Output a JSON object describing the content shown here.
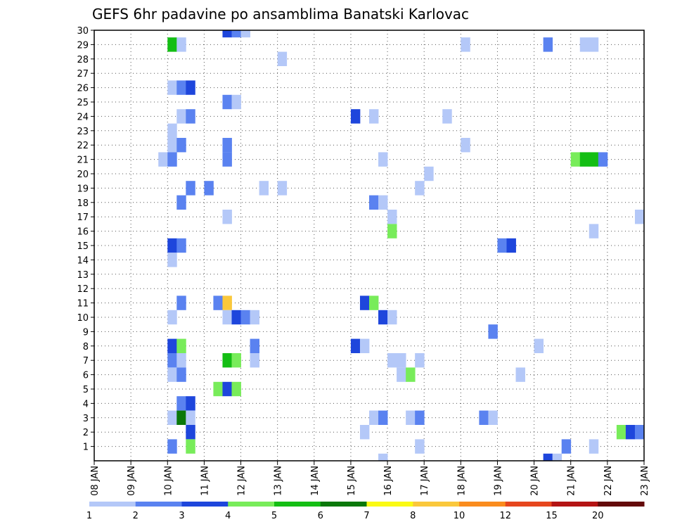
{
  "chart_data": {
    "type": "heatmap",
    "title": "GEFS 6hr padavine po ansamblima Banatski Karlovac",
    "xlabel": "",
    "ylabel": "",
    "x_ticks": [
      "08 JAN",
      "09 JAN",
      "10 JAN",
      "11 JAN",
      "12 JAN",
      "13 JAN",
      "14 JAN",
      "15 JAN",
      "16 JAN",
      "17 JAN",
      "18 JAN",
      "19 JAN",
      "20 JAN",
      "21 JAN",
      "22 JAN",
      "23 JAN"
    ],
    "x_range_days": [
      0,
      15
    ],
    "y_ticks": [
      "1",
      "2",
      "3",
      "4",
      "5",
      "6",
      "7",
      "8",
      "9",
      "10",
      "11",
      "12",
      "13",
      "14",
      "15",
      "16",
      "17",
      "18",
      "19",
      "20",
      "21",
      "22",
      "23",
      "24",
      "25",
      "26",
      "27",
      "28",
      "29",
      "30"
    ],
    "y_range": [
      0,
      30
    ],
    "step_hours": 6,
    "grid": true,
    "legend": {
      "placement": "bottom",
      "levels": [
        "1",
        "2",
        "3",
        "4",
        "5",
        "6",
        "7",
        "8",
        "10",
        "12",
        "15",
        "20"
      ],
      "colors": [
        "#b4c8f8",
        "#5a82f0",
        "#1e46dc",
        "#78ec5a",
        "#14be14",
        "#0a780a",
        "#fafa14",
        "#fac83c",
        "#fa8c1e",
        "#e6461e",
        "#b41414",
        "#640a0a"
      ]
    },
    "unit_colors": [
      "#b4c8f8",
      "#5a82f0",
      "#1e46dc",
      "#78ec5a",
      "#14be14",
      "#0a780a",
      "#fac83c"
    ],
    "cells": [
      {
        "member": 30,
        "day": 3.5,
        "level": 3
      },
      {
        "member": 30,
        "day": 3.75,
        "level": 2
      },
      {
        "member": 30,
        "day": 4.0,
        "level": 1
      },
      {
        "member": 29,
        "day": 2.0,
        "level": 5
      },
      {
        "member": 29,
        "day": 2.25,
        "level": 1
      },
      {
        "member": 29,
        "day": 10.0,
        "level": 1
      },
      {
        "member": 29,
        "day": 12.25,
        "level": 2
      },
      {
        "member": 29,
        "day": 13.25,
        "level": 1
      },
      {
        "member": 29,
        "day": 13.5,
        "level": 1
      },
      {
        "member": 28,
        "day": 5.0,
        "level": 1
      },
      {
        "member": 26,
        "day": 2.0,
        "level": 1
      },
      {
        "member": 26,
        "day": 2.25,
        "level": 2
      },
      {
        "member": 26,
        "day": 2.5,
        "level": 3
      },
      {
        "member": 25,
        "day": 3.5,
        "level": 2
      },
      {
        "member": 25,
        "day": 3.75,
        "level": 1
      },
      {
        "member": 24,
        "day": 2.25,
        "level": 1
      },
      {
        "member": 24,
        "day": 2.5,
        "level": 2
      },
      {
        "member": 24,
        "day": 7.0,
        "level": 3
      },
      {
        "member": 24,
        "day": 7.5,
        "level": 1
      },
      {
        "member": 24,
        "day": 9.5,
        "level": 1
      },
      {
        "member": 23,
        "day": 2.0,
        "level": 1
      },
      {
        "member": 22,
        "day": 2.0,
        "level": 1
      },
      {
        "member": 22,
        "day": 2.25,
        "level": 2
      },
      {
        "member": 22,
        "day": 3.5,
        "level": 2
      },
      {
        "member": 22,
        "day": 10.0,
        "level": 1
      },
      {
        "member": 21,
        "day": 1.75,
        "level": 1
      },
      {
        "member": 21,
        "day": 2.0,
        "level": 2
      },
      {
        "member": 21,
        "day": 3.5,
        "level": 2
      },
      {
        "member": 21,
        "day": 7.75,
        "level": 1
      },
      {
        "member": 21,
        "day": 13.0,
        "level": 4
      },
      {
        "member": 21,
        "day": 13.25,
        "level": 5
      },
      {
        "member": 21,
        "day": 13.5,
        "level": 5
      },
      {
        "member": 21,
        "day": 13.75,
        "level": 2
      },
      {
        "member": 20,
        "day": 9.0,
        "level": 1
      },
      {
        "member": 19,
        "day": 2.5,
        "level": 2
      },
      {
        "member": 19,
        "day": 3.0,
        "level": 2
      },
      {
        "member": 19,
        "day": 4.5,
        "level": 1
      },
      {
        "member": 19,
        "day": 5.0,
        "level": 1
      },
      {
        "member": 19,
        "day": 8.75,
        "level": 1
      },
      {
        "member": 18,
        "day": 2.25,
        "level": 2
      },
      {
        "member": 18,
        "day": 7.5,
        "level": 2
      },
      {
        "member": 18,
        "day": 7.75,
        "level": 1
      },
      {
        "member": 17,
        "day": 3.5,
        "level": 1
      },
      {
        "member": 17,
        "day": 8.0,
        "level": 1
      },
      {
        "member": 17,
        "day": 14.75,
        "level": 1
      },
      {
        "member": 16,
        "day": 8.0,
        "level": 4
      },
      {
        "member": 16,
        "day": 13.5,
        "level": 1
      },
      {
        "member": 15,
        "day": 2.0,
        "level": 3
      },
      {
        "member": 15,
        "day": 2.25,
        "level": 2
      },
      {
        "member": 15,
        "day": 11.0,
        "level": 2
      },
      {
        "member": 15,
        "day": 11.25,
        "level": 3
      },
      {
        "member": 14,
        "day": 2.0,
        "level": 1
      },
      {
        "member": 11,
        "day": 2.25,
        "level": 2
      },
      {
        "member": 11,
        "day": 3.25,
        "level": 2
      },
      {
        "member": 11,
        "day": 3.5,
        "level": 7
      },
      {
        "member": 11,
        "day": 7.25,
        "level": 3
      },
      {
        "member": 11,
        "day": 7.5,
        "level": 4
      },
      {
        "member": 10,
        "day": 2.0,
        "level": 1
      },
      {
        "member": 10,
        "day": 3.5,
        "level": 1
      },
      {
        "member": 10,
        "day": 3.75,
        "level": 3
      },
      {
        "member": 10,
        "day": 4.0,
        "level": 2
      },
      {
        "member": 10,
        "day": 4.25,
        "level": 1
      },
      {
        "member": 10,
        "day": 7.75,
        "level": 3
      },
      {
        "member": 10,
        "day": 8.0,
        "level": 1
      },
      {
        "member": 9,
        "day": 10.75,
        "level": 2
      },
      {
        "member": 8,
        "day": 2.0,
        "level": 3
      },
      {
        "member": 8,
        "day": 2.25,
        "level": 4
      },
      {
        "member": 8,
        "day": 4.25,
        "level": 2
      },
      {
        "member": 8,
        "day": 7.0,
        "level": 3
      },
      {
        "member": 8,
        "day": 7.25,
        "level": 1
      },
      {
        "member": 8,
        "day": 12.0,
        "level": 1
      },
      {
        "member": 7,
        "day": 2.0,
        "level": 2
      },
      {
        "member": 7,
        "day": 2.25,
        "level": 1
      },
      {
        "member": 7,
        "day": 3.5,
        "level": 5
      },
      {
        "member": 7,
        "day": 3.75,
        "level": 4
      },
      {
        "member": 7,
        "day": 4.25,
        "level": 1
      },
      {
        "member": 7,
        "day": 8.0,
        "level": 1
      },
      {
        "member": 7,
        "day": 8.25,
        "level": 1
      },
      {
        "member": 7,
        "day": 8.75,
        "level": 1
      },
      {
        "member": 6,
        "day": 2.0,
        "level": 1
      },
      {
        "member": 6,
        "day": 2.25,
        "level": 2
      },
      {
        "member": 6,
        "day": 8.25,
        "level": 1
      },
      {
        "member": 6,
        "day": 8.5,
        "level": 4
      },
      {
        "member": 6,
        "day": 11.5,
        "level": 1
      },
      {
        "member": 5,
        "day": 3.25,
        "level": 4
      },
      {
        "member": 5,
        "day": 3.5,
        "level": 3
      },
      {
        "member": 5,
        "day": 3.75,
        "level": 4
      },
      {
        "member": 4,
        "day": 2.25,
        "level": 2
      },
      {
        "member": 4,
        "day": 2.5,
        "level": 3
      },
      {
        "member": 3,
        "day": 2.0,
        "level": 1
      },
      {
        "member": 3,
        "day": 2.25,
        "level": 6
      },
      {
        "member": 3,
        "day": 2.5,
        "level": 1
      },
      {
        "member": 3,
        "day": 7.5,
        "level": 1
      },
      {
        "member": 3,
        "day": 7.75,
        "level": 2
      },
      {
        "member": 3,
        "day": 8.5,
        "level": 1
      },
      {
        "member": 3,
        "day": 8.75,
        "level": 2
      },
      {
        "member": 3,
        "day": 10.5,
        "level": 2
      },
      {
        "member": 3,
        "day": 10.75,
        "level": 1
      },
      {
        "member": 2,
        "day": 2.5,
        "level": 3
      },
      {
        "member": 2,
        "day": 7.25,
        "level": 1
      },
      {
        "member": 2,
        "day": 14.25,
        "level": 4
      },
      {
        "member": 2,
        "day": 14.5,
        "level": 3
      },
      {
        "member": 2,
        "day": 14.75,
        "level": 2
      },
      {
        "member": 1,
        "day": 2.0,
        "level": 2
      },
      {
        "member": 1,
        "day": 2.5,
        "level": 4
      },
      {
        "member": 1,
        "day": 8.75,
        "level": 1
      },
      {
        "member": 1,
        "day": 12.75,
        "level": 2
      },
      {
        "member": 1,
        "day": 13.5,
        "level": 1
      },
      {
        "member": 0,
        "day": 7.75,
        "level": 1
      },
      {
        "member": 0,
        "day": 12.25,
        "level": 3
      },
      {
        "member": 0,
        "day": 12.5,
        "level": 1
      }
    ]
  }
}
